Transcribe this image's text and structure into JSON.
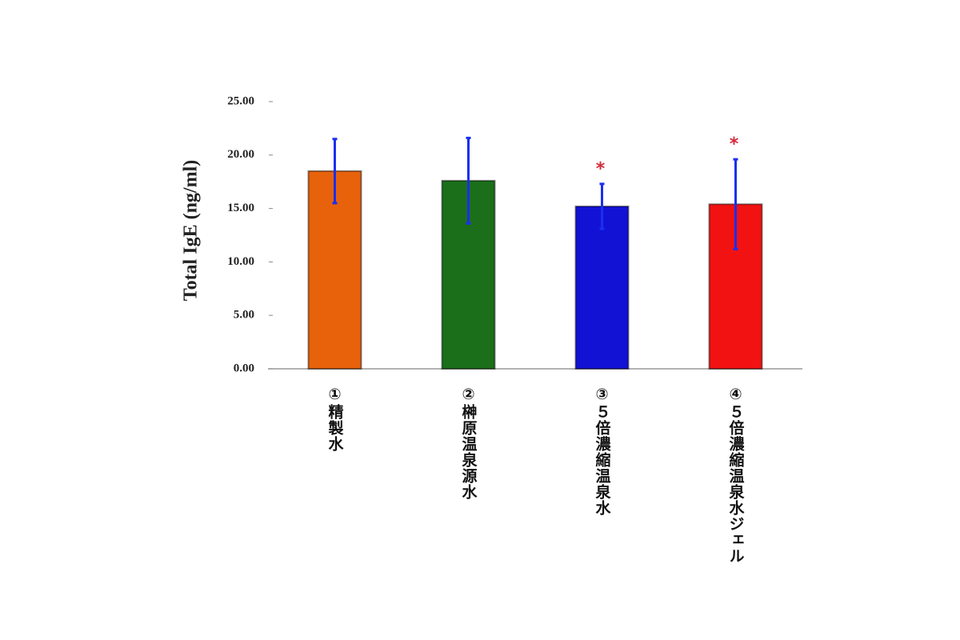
{
  "chart_data": {
    "type": "bar",
    "y_label": "Total IgE (ng/ml)",
    "categories": [
      "①精製水",
      "②榊原温泉源水",
      "③５倍濃縮温泉水",
      "④５倍濃縮温泉水ジェル"
    ],
    "values": [
      18.5,
      17.6,
      15.2,
      15.4
    ],
    "errors": [
      3.0,
      4.0,
      2.1,
      4.2
    ],
    "colors": [
      "#e8620c",
      "#1b6f1b",
      "#1212d4",
      "#f21212"
    ],
    "error_color": "#1a2ff0",
    "annotations": [
      null,
      null,
      "*",
      "*"
    ],
    "annotation_color": "#d42a3a",
    "ylim": [
      0,
      25
    ],
    "yticks": [
      {
        "value": 0,
        "label": "0.00"
      },
      {
        "value": 5,
        "label": "5.00"
      },
      {
        "value": 10,
        "label": "10.00"
      },
      {
        "value": 15,
        "label": "15.00"
      },
      {
        "value": 20,
        "label": "20.00"
      },
      {
        "value": 25,
        "label": "25.00"
      }
    ]
  }
}
